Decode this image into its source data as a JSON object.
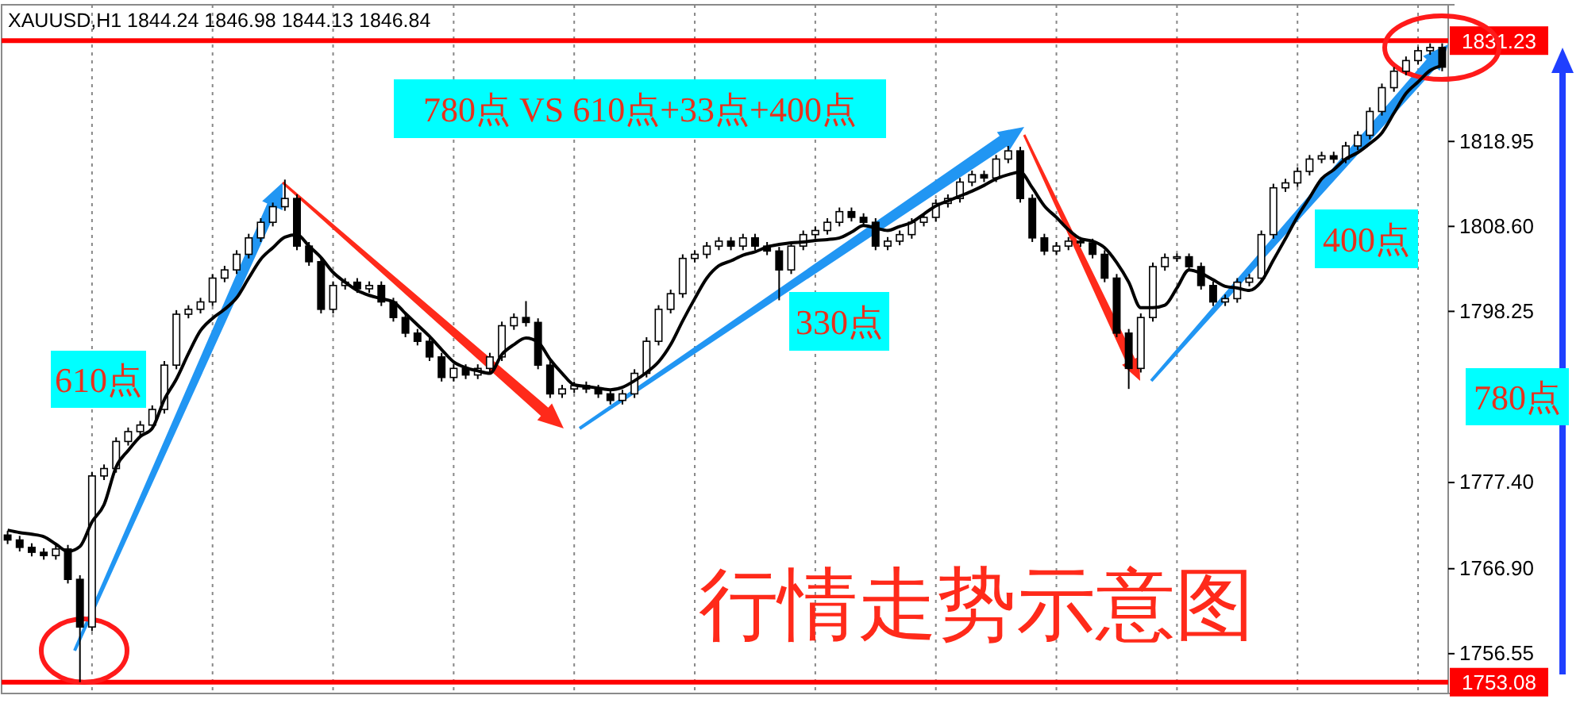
{
  "chart_data": {
    "type": "candlestick",
    "title": "XAUUSD,H1  1844.24 1846.98 1844.13 1846.84",
    "color": "#000000",
    "categories": [
      null,
      null,
      null,
      null,
      null,
      null,
      null,
      null,
      null,
      null,
      null,
      null,
      null,
      null,
      null,
      null,
      null,
      null,
      null,
      null,
      null,
      null,
      null,
      null,
      null,
      null,
      null,
      null,
      null,
      null,
      null,
      null,
      null,
      null,
      null,
      null,
      null,
      null,
      null,
      null,
      null,
      null,
      null,
      null,
      null,
      null,
      null,
      null,
      null,
      null,
      null,
      null,
      null,
      null,
      null,
      null,
      null,
      null,
      null,
      null,
      null,
      null,
      null,
      null,
      null,
      null,
      null,
      null,
      null,
      null,
      null,
      null,
      null,
      null,
      null,
      null,
      null,
      null,
      null,
      null,
      null,
      null,
      null,
      null,
      null,
      null,
      null,
      null,
      null,
      null,
      null,
      null,
      null,
      null,
      null,
      null,
      null,
      null,
      null,
      null,
      null,
      null,
      null,
      null,
      null,
      null,
      null,
      null,
      null,
      null,
      null,
      null,
      null,
      null,
      null,
      null,
      null,
      null,
      null,
      null
    ],
    "ohlc": [
      [
        1771.0,
        1771.5,
        1769.9,
        1770.4
      ],
      [
        1770.4,
        1770.9,
        1769.0,
        1769.5
      ],
      [
        1769.5,
        1770.0,
        1768.4,
        1768.9
      ],
      [
        1768.9,
        1769.4,
        1768.0,
        1768.5
      ],
      [
        1768.5,
        1769.8,
        1768.0,
        1769.3
      ],
      [
        1769.3,
        1769.8,
        1765.1,
        1765.6
      ],
      [
        1765.6,
        1766.1,
        1753.08,
        1759.8
      ],
      [
        1759.8,
        1778.7,
        1759.3,
        1778.2
      ],
      [
        1778.2,
        1779.6,
        1777.7,
        1779.1
      ],
      [
        1779.1,
        1782.9,
        1778.6,
        1782.4
      ],
      [
        1782.4,
        1784.1,
        1781.9,
        1783.6
      ],
      [
        1783.6,
        1784.9,
        1783.1,
        1784.4
      ],
      [
        1784.4,
        1786.8,
        1783.9,
        1786.3
      ],
      [
        1786.3,
        1792.2,
        1785.8,
        1791.7
      ],
      [
        1791.7,
        1798.4,
        1791.2,
        1797.9
      ],
      [
        1797.9,
        1799.0,
        1797.4,
        1798.5
      ],
      [
        1798.5,
        1799.9,
        1798.0,
        1799.4
      ],
      [
        1799.4,
        1802.8,
        1798.9,
        1802.3
      ],
      [
        1802.3,
        1803.8,
        1801.8,
        1803.3
      ],
      [
        1803.3,
        1805.7,
        1802.8,
        1805.2
      ],
      [
        1805.2,
        1807.7,
        1804.7,
        1807.2
      ],
      [
        1807.2,
        1809.6,
        1806.7,
        1809.1
      ],
      [
        1809.1,
        1811.5,
        1808.6,
        1811.0
      ],
      [
        1811.0,
        1814.3,
        1810.5,
        1812.0
      ],
      [
        1812.0,
        1812.5,
        1805.7,
        1806.2
      ],
      [
        1806.2,
        1806.7,
        1803.8,
        1804.3
      ],
      [
        1804.3,
        1804.8,
        1798.0,
        1798.5
      ],
      [
        1798.5,
        1801.9,
        1798.0,
        1801.4
      ],
      [
        1801.4,
        1802.3,
        1800.9,
        1801.8
      ],
      [
        1801.8,
        1802.3,
        1800.5,
        1801.0
      ],
      [
        1801.0,
        1801.9,
        1800.5,
        1801.4
      ],
      [
        1801.4,
        1801.9,
        1798.9,
        1799.4
      ],
      [
        1799.4,
        1799.9,
        1797.0,
        1797.5
      ],
      [
        1797.5,
        1798.0,
        1795.1,
        1795.6
      ],
      [
        1795.6,
        1796.1,
        1794.1,
        1794.6
      ],
      [
        1794.6,
        1795.1,
        1792.2,
        1792.7
      ],
      [
        1792.7,
        1793.2,
        1789.7,
        1790.2
      ],
      [
        1790.2,
        1791.8,
        1789.7,
        1791.3
      ],
      [
        1791.3,
        1791.8,
        1790.0,
        1790.5
      ],
      [
        1790.5,
        1791.8,
        1790.0,
        1791.3
      ],
      [
        1791.3,
        1793.2,
        1790.8,
        1792.7
      ],
      [
        1792.7,
        1797.0,
        1792.2,
        1796.5
      ],
      [
        1796.5,
        1798.0,
        1796.0,
        1797.5
      ],
      [
        1797.5,
        1799.5,
        1796.4,
        1796.9
      ],
      [
        1796.9,
        1797.4,
        1791.2,
        1791.7
      ],
      [
        1791.7,
        1792.2,
        1787.7,
        1788.2
      ],
      [
        1788.2,
        1789.3,
        1787.7,
        1788.8
      ],
      [
        1788.8,
        1789.7,
        1788.3,
        1789.2
      ],
      [
        1789.2,
        1789.7,
        1788.3,
        1788.8
      ],
      [
        1788.8,
        1789.3,
        1787.7,
        1788.2
      ],
      [
        1788.2,
        1788.7,
        1786.9,
        1787.4
      ],
      [
        1787.4,
        1788.7,
        1786.9,
        1788.2
      ],
      [
        1788.2,
        1791.2,
        1787.7,
        1790.7
      ],
      [
        1790.7,
        1795.1,
        1790.2,
        1794.6
      ],
      [
        1794.6,
        1799.0,
        1794.1,
        1798.5
      ],
      [
        1798.5,
        1800.9,
        1798.0,
        1800.4
      ],
      [
        1800.4,
        1805.2,
        1799.9,
        1804.7
      ],
      [
        1804.7,
        1805.7,
        1804.2,
        1805.2
      ],
      [
        1805.2,
        1806.7,
        1804.7,
        1806.2
      ],
      [
        1806.2,
        1807.3,
        1805.7,
        1806.8
      ],
      [
        1806.8,
        1807.3,
        1805.7,
        1806.2
      ],
      [
        1806.2,
        1807.7,
        1805.7,
        1807.2
      ],
      [
        1807.2,
        1807.7,
        1805.7,
        1806.2
      ],
      [
        1806.2,
        1806.7,
        1805.1,
        1805.6
      ],
      [
        1805.6,
        1806.1,
        1799.6,
        1803.3
      ],
      [
        1803.3,
        1806.7,
        1802.8,
        1806.2
      ],
      [
        1806.2,
        1808.1,
        1805.7,
        1807.6
      ],
      [
        1807.6,
        1808.6,
        1807.1,
        1808.1
      ],
      [
        1808.1,
        1809.6,
        1807.6,
        1809.1
      ],
      [
        1809.1,
        1810.9,
        1808.6,
        1810.4
      ],
      [
        1810.4,
        1810.9,
        1809.2,
        1809.7
      ],
      [
        1809.7,
        1810.2,
        1808.6,
        1809.1
      ],
      [
        1809.1,
        1809.6,
        1805.7,
        1806.2
      ],
      [
        1806.2,
        1807.3,
        1805.7,
        1806.8
      ],
      [
        1806.8,
        1808.1,
        1806.3,
        1807.6
      ],
      [
        1807.6,
        1809.6,
        1807.1,
        1809.1
      ],
      [
        1809.1,
        1810.2,
        1808.6,
        1809.7
      ],
      [
        1809.7,
        1811.9,
        1809.2,
        1811.4
      ],
      [
        1811.4,
        1812.5,
        1810.9,
        1812.0
      ],
      [
        1812.0,
        1814.5,
        1811.5,
        1814.0
      ],
      [
        1814.0,
        1815.4,
        1813.5,
        1814.9
      ],
      [
        1814.9,
        1815.4,
        1814.0,
        1814.5
      ],
      [
        1814.5,
        1817.3,
        1814.0,
        1816.8
      ],
      [
        1816.8,
        1818.4,
        1816.3,
        1817.8
      ],
      [
        1817.8,
        1818.3,
        1811.5,
        1812.0
      ],
      [
        1812.0,
        1812.5,
        1806.7,
        1807.2
      ],
      [
        1807.2,
        1807.7,
        1805.1,
        1805.6
      ],
      [
        1805.6,
        1806.7,
        1805.1,
        1806.2
      ],
      [
        1806.2,
        1807.3,
        1805.7,
        1806.8
      ],
      [
        1806.8,
        1807.3,
        1806.1,
        1806.6
      ],
      [
        1806.6,
        1807.1,
        1804.7,
        1805.2
      ],
      [
        1805.2,
        1805.7,
        1801.8,
        1802.3
      ],
      [
        1802.3,
        1802.8,
        1795.1,
        1795.6
      ],
      [
        1795.6,
        1796.1,
        1788.8,
        1791.3
      ],
      [
        1791.3,
        1798.0,
        1790.8,
        1797.5
      ],
      [
        1797.5,
        1804.2,
        1797.0,
        1803.7
      ],
      [
        1803.7,
        1805.3,
        1803.2,
        1804.8
      ],
      [
        1804.8,
        1805.3,
        1804.3,
        1804.9
      ],
      [
        1804.9,
        1805.3,
        1803.2,
        1803.7
      ],
      [
        1803.7,
        1804.2,
        1800.9,
        1801.4
      ],
      [
        1801.4,
        1801.9,
        1798.9,
        1799.4
      ],
      [
        1799.4,
        1800.3,
        1798.9,
        1799.8
      ],
      [
        1799.8,
        1802.3,
        1799.3,
        1801.8
      ],
      [
        1801.8,
        1802.8,
        1801.3,
        1802.3
      ],
      [
        1802.3,
        1808.1,
        1801.8,
        1807.6
      ],
      [
        1807.6,
        1813.8,
        1807.1,
        1813.3
      ],
      [
        1813.3,
        1814.4,
        1812.8,
        1813.9
      ],
      [
        1813.9,
        1815.8,
        1813.4,
        1815.3
      ],
      [
        1815.3,
        1817.3,
        1814.8,
        1816.8
      ],
      [
        1816.8,
        1817.7,
        1816.3,
        1817.2
      ],
      [
        1817.2,
        1817.7,
        1816.3,
        1816.8
      ],
      [
        1816.8,
        1818.9,
        1816.3,
        1818.4
      ],
      [
        1818.4,
        1820.2,
        1817.9,
        1819.7
      ],
      [
        1819.7,
        1823.1,
        1819.2,
        1822.6
      ],
      [
        1822.6,
        1826.0,
        1822.1,
        1825.5
      ],
      [
        1825.5,
        1828.0,
        1825.0,
        1827.5
      ],
      [
        1827.5,
        1829.3,
        1827.0,
        1828.8
      ],
      [
        1828.8,
        1830.5,
        1828.3,
        1830.0
      ],
      [
        1830.0,
        1830.9,
        1829.5,
        1830.4
      ],
      [
        1830.4,
        1830.9,
        1827.5,
        1828.0
      ]
    ],
    "series": [
      {
        "type": "line",
        "color": "#000000",
        "values": [
          1771.6,
          1771.3,
          1771.1,
          1770.8,
          1769.9,
          1769.0,
          1769.6,
          1772.6,
          1774.7,
          1779.3,
          1781.3,
          1783.0,
          1784.0,
          1787.5,
          1790.0,
          1793.1,
          1795.9,
          1797.4,
          1798.5,
          1799.9,
          1802.3,
          1804.6,
          1806.0,
          1807.3,
          1807.6,
          1806.2,
          1804.8,
          1803.0,
          1801.8,
          1800.8,
          1800.2,
          1799.8,
          1799.4,
          1798.0,
          1796.6,
          1795.2,
          1793.6,
          1792.1,
          1791.4,
          1791.0,
          1790.7,
          1793.0,
          1794.2,
          1795.0,
          1794.5,
          1792.4,
          1790.7,
          1789.3,
          1789.1,
          1788.9,
          1788.7,
          1789.0,
          1789.8,
          1790.8,
          1792.1,
          1794.2,
          1797.1,
          1799.8,
          1802.3,
          1803.8,
          1804.4,
          1805.1,
          1805.5,
          1806.1,
          1806.4,
          1806.6,
          1806.7,
          1806.9,
          1807.0,
          1807.2,
          1807.9,
          1808.7,
          1808.4,
          1808.1,
          1808.6,
          1809.1,
          1810.1,
          1811.1,
          1811.7,
          1812.3,
          1812.9,
          1813.6,
          1814.4,
          1814.9,
          1815.2,
          1813.3,
          1811.1,
          1809.7,
          1808.2,
          1807.1,
          1806.8,
          1806.0,
          1804.2,
          1801.8,
          1798.7,
          1798.7,
          1799.0,
          1801.1,
          1803.3,
          1802.9,
          1802.1,
          1801.3,
          1801.1,
          1800.8,
          1801.9,
          1804.5,
          1807.1,
          1809.8,
          1812.1,
          1814.4,
          1815.5,
          1816.8,
          1817.6,
          1818.7,
          1820.0,
          1822.4,
          1824.8,
          1826.2,
          1827.6,
          1828.2
        ]
      }
    ],
    "ylim": [
      1751.7,
      1835.6
    ],
    "yticks": [
      {
        "value": 1756.55,
        "label": "1756.55"
      },
      {
        "value": 1766.9,
        "label": "1766.90"
      },
      {
        "value": 1777.4,
        "label": "1777.40"
      },
      {
        "value": 1798.25,
        "label": "1798.25"
      },
      {
        "value": 1808.6,
        "label": "1808.60"
      },
      {
        "value": 1818.95,
        "label": "1818.95"
      }
    ],
    "grid": "x",
    "tick_labels": "y",
    "ref_lines": [
      {
        "axis": "y",
        "value": 1831.23,
        "label": "1831.23",
        "color": "#ff0000"
      },
      {
        "axis": "y",
        "value": 1753.08,
        "label": "1753.08",
        "color": "#ff0000"
      }
    ],
    "annotations": [
      "780点  VS  610点+33点+400点",
      "610点",
      "330点",
      "400点",
      "780点",
      "行情走势示意图"
    ]
  }
}
